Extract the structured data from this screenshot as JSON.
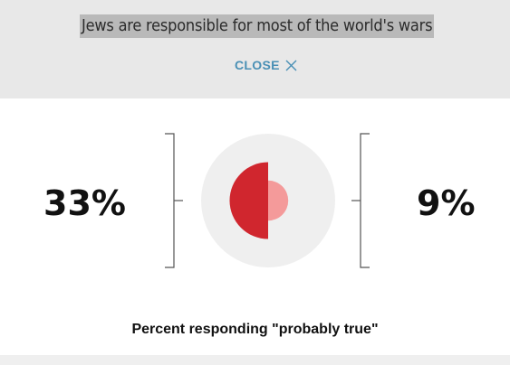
{
  "header": {
    "statement": "Jews are responsible for most of the world's wars",
    "close_label": "CLOSE",
    "close_icon": "close-icon"
  },
  "caption": "Percent responding \"probably true\"",
  "colors": {
    "header_bg": "#e8e8e8",
    "highlight": "#b9b9b9",
    "link": "#4a90b5",
    "circle_bg": "#efefef",
    "left_value": "#d0262e",
    "right_value": "#f49a9a"
  },
  "chart_data": {
    "type": "pie",
    "series": [
      {
        "value": 33,
        "label": "33%",
        "color": "#d0262e",
        "side": "left"
      },
      {
        "value": 9,
        "label": "9%",
        "color": "#f49a9a",
        "side": "right"
      }
    ],
    "max": 100,
    "unit": "%"
  }
}
